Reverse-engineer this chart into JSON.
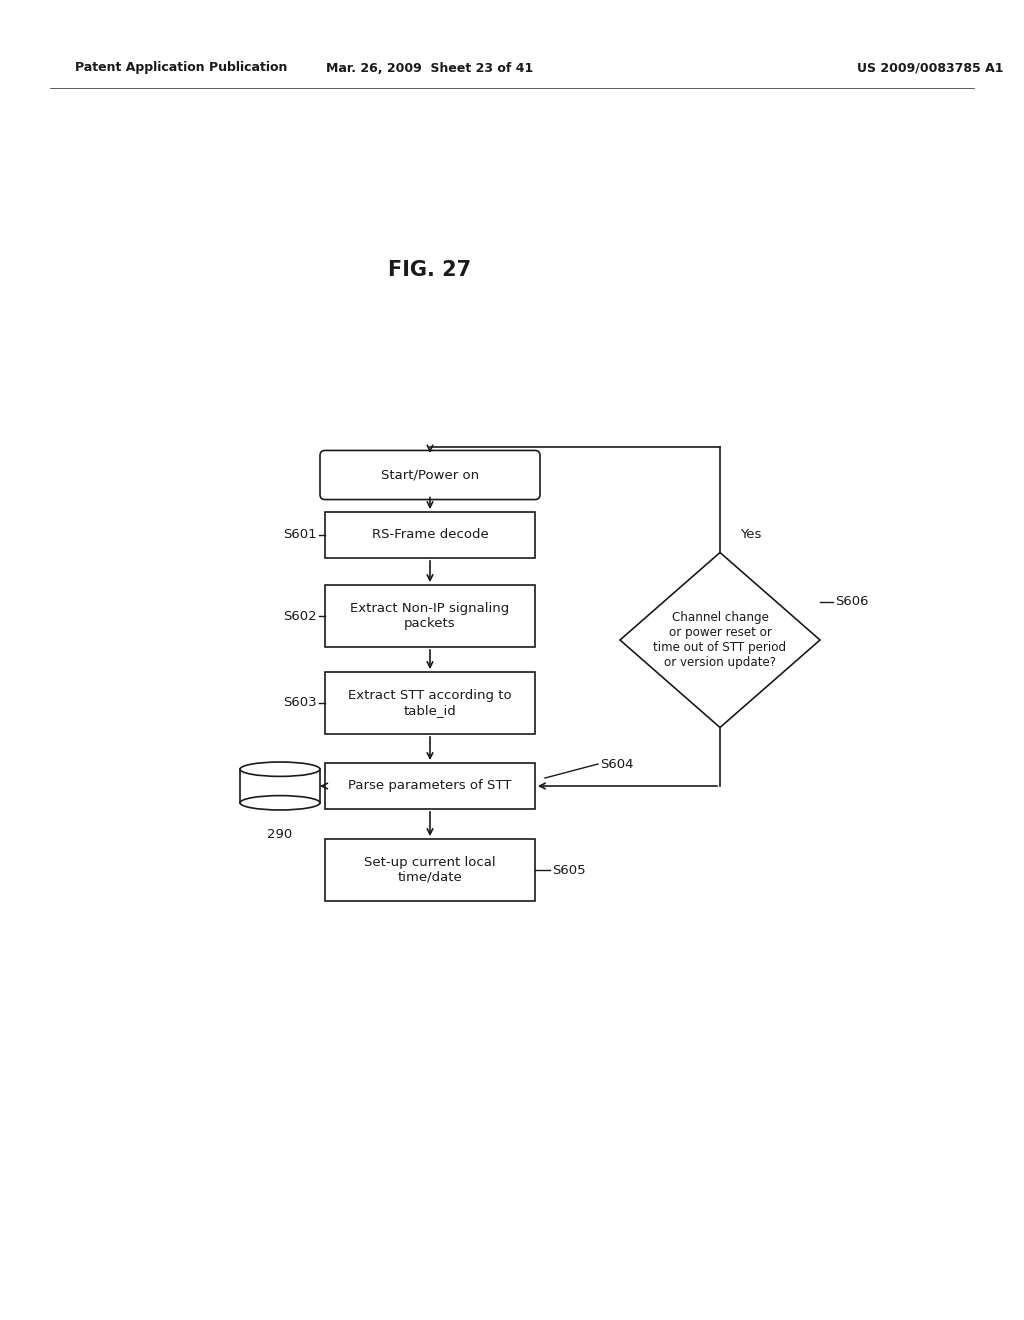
{
  "title": "FIG. 27",
  "header_left": "Patent Application Publication",
  "header_mid": "Mar. 26, 2009  Sheet 23 of 41",
  "header_right": "US 2009/0083785 A1",
  "bg_color": "#ffffff",
  "line_color": "#1a1a1a",
  "text_color": "#1a1a1a",
  "font_size": 9.5,
  "label_font_size": 9.5,
  "title_font_size": 15,
  "header_font_size": 9,
  "start_text": "Start/Power on",
  "s601_text": "RS-Frame decode",
  "s602_text": "Extract Non-IP signaling\npackets",
  "s603_text": "Extract STT according to\ntable_id",
  "s604_text": "Parse parameters of STT",
  "s605_text": "Set-up current local\ntime/date",
  "s606_text": "Channel change\nor power reset or\ntime out of STT period\nor version update?",
  "yes_text": "Yes",
  "label_290": "290",
  "label_s601": "S601",
  "label_s602": "S602",
  "label_s603": "S603",
  "label_s604": "S604",
  "label_s605": "S605",
  "label_s606": "S606"
}
